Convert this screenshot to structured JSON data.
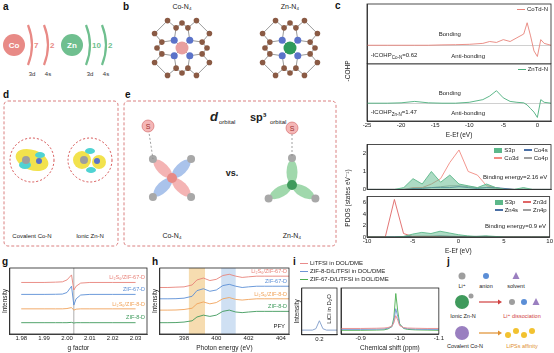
{
  "figure": {
    "a": {
      "label": "a",
      "atoms": [
        {
          "symbol": "Co",
          "color": "#e88a86",
          "shells": [
            {
              "orbital": "3d",
              "electrons": 7
            },
            {
              "orbital": "4s",
              "electrons": 2
            }
          ]
        },
        {
          "symbol": "Zn",
          "color": "#6fbf8f",
          "shells": [
            {
              "orbital": "3d",
              "electrons": 10
            },
            {
              "orbital": "4s",
              "electrons": 2
            }
          ]
        }
      ]
    },
    "b": {
      "label": "b",
      "structures": [
        {
          "title": "Co-N₄",
          "metal_color": "#e8a0a0"
        },
        {
          "title": "Zn-N₄",
          "metal_color": "#2e9b5a"
        }
      ]
    },
    "c": {
      "label": "c"
    },
    "d": {
      "label": "d",
      "captions": [
        "Covalent Co-N",
        "Ionic Zn-N"
      ]
    },
    "e": {
      "label": "e",
      "structures": [
        "Co-N₄",
        "Zn-N₄"
      ],
      "orbitals": [
        {
          "symbol": "d",
          "sub": "orbital"
        },
        {
          "symbol": "sp³",
          "sub": "orbital"
        }
      ],
      "vs": "vs.",
      "atom": "S"
    },
    "g": {
      "label": "g"
    },
    "h": {
      "label": "h"
    },
    "i": {
      "label": "i"
    },
    "j": {
      "label": "j",
      "li": "Li⁺",
      "anion": "anion",
      "solvent": "solvent",
      "ionic": "Ionic Zn-N",
      "dissociation": "Li⁺ dissociation",
      "covalent": "Covalent Co-N",
      "affinity": "LiPSs affinity"
    }
  },
  "chart_data": [
    {
      "type": "line",
      "x": [
        -25,
        -22,
        -20,
        -18,
        -16,
        -14,
        -12,
        -10,
        -8,
        -7,
        -6,
        -5,
        -4,
        -3,
        -2,
        -1.5,
        -1,
        -0.5,
        0,
        0.5,
        1,
        2
      ],
      "xlim": [
        -25,
        2
      ],
      "xticks": [
        -25,
        -20,
        -15,
        -10,
        -5,
        0
      ],
      "ylim": [
        -1,
        2.2
      ],
      "yticks": [
        0
      ],
      "grid": true,
      "tick_labels": false,
      "y_label": "-COHP",
      "legend": "top-right",
      "series": [
        {
          "name": "CoTd-N",
          "color": "#e8837a",
          "values": [
            0,
            0,
            0,
            0,
            0,
            0.02,
            0.03,
            0.05,
            0.1,
            0.2,
            0.15,
            0.3,
            0.2,
            0.4,
            0.6,
            1.2,
            0.5,
            -0.3,
            -0.6,
            0.3,
            0.1,
            0
          ]
        }
      ],
      "annotations": [
        {
          "text": "Bonding"
        },
        {
          "text": "Anti-bonding"
        },
        {
          "text": "-ICOHP",
          "sub": "Co-N",
          "tail": "=0.62"
        }
      ]
    },
    {
      "type": "line",
      "x": [
        -25,
        -22,
        -20,
        -18,
        -16,
        -14,
        -12,
        -10,
        -8,
        -7,
        -6,
        -5,
        -4,
        -3,
        -2,
        -1.5,
        -1,
        -0.5,
        0,
        0.5,
        1,
        2
      ],
      "xlim": [
        -25,
        2
      ],
      "xticks": [
        -25,
        -20,
        -15,
        -10,
        -5,
        0
      ],
      "ylim": [
        -1,
        2.2
      ],
      "yticks": [
        0
      ],
      "grid": true,
      "tick_labels": "x",
      "x_label": "E-Ef (eV)",
      "legend": "top-right",
      "series": [
        {
          "name": "ZnTd-N",
          "color": "#4caf7d",
          "values": [
            0,
            0,
            0.02,
            0.1,
            0.02,
            0,
            0,
            0.05,
            0.2,
            0.4,
            0.7,
            0.3,
            0.1,
            0.05,
            0.02,
            -0.1,
            -0.3,
            -0.5,
            -0.8,
            0.2,
            0.05,
            0
          ]
        }
      ],
      "annotations": [
        {
          "text": "Bonding"
        },
        {
          "text": "Anti-bonding"
        },
        {
          "text": "-ICOHP",
          "sub": "Zn-N",
          "tail": "=1.47"
        }
      ]
    },
    {
      "type": "line",
      "x": [
        -10,
        -9,
        -8,
        -7,
        -6,
        -5,
        -4,
        -3,
        -2,
        -1,
        0,
        1,
        2,
        3,
        4,
        5,
        6,
        7,
        8,
        9,
        10
      ],
      "xlim": [
        -10,
        10
      ],
      "xticks": [
        -10,
        -5,
        0,
        5,
        10
      ],
      "ylim": [
        0,
        2.5
      ],
      "yticks": [
        0,
        1,
        2
      ],
      "tick_labels": "y",
      "y_label": "PDOS (states eV⁻¹)",
      "legend": "top-right",
      "series": [
        {
          "name": "S3p",
          "color": "#5cb88a",
          "type": "area",
          "values": [
            0,
            0,
            0,
            0,
            0.1,
            0.6,
            0.3,
            1.0,
            0.4,
            0.8,
            0.3,
            0.2,
            0.1,
            0.3,
            0.1,
            0,
            0,
            0.1,
            0,
            0,
            0
          ]
        },
        {
          "name": "Co4s",
          "color": "#4a6fa5",
          "values": [
            0,
            0,
            0,
            0,
            0,
            0.05,
            0.05,
            0.1,
            0.1,
            0.1,
            0.15,
            0.1,
            0.05,
            0.1,
            0.1,
            0.05,
            0,
            0,
            0,
            0,
            0
          ]
        },
        {
          "name": "Co3d",
          "color": "#f28b82",
          "values": [
            0,
            0,
            0,
            0,
            0,
            0.1,
            0.1,
            0.3,
            0.6,
            1.5,
            2.2,
            1.0,
            0.8,
            0.2,
            0.1,
            0,
            0,
            0,
            0,
            0,
            0
          ]
        },
        {
          "name": "Co4p",
          "color": "#a0a0a0",
          "values": [
            0,
            0,
            0,
            0,
            0,
            0.05,
            0.1,
            0.1,
            0.15,
            0.2,
            0.2,
            0.15,
            0.1,
            0.1,
            0.05,
            0.05,
            0,
            0,
            0,
            0,
            0
          ]
        }
      ],
      "annotations": [
        {
          "text": "Binding energy=2.16 eV"
        }
      ]
    },
    {
      "type": "line",
      "x": [
        -10,
        -9,
        -8,
        -7,
        -6,
        -5,
        -4,
        -3,
        -2,
        -1,
        0,
        1,
        2,
        3,
        4,
        5,
        6,
        7,
        8,
        9,
        10
      ],
      "xlim": [
        -10,
        10
      ],
      "xticks": [
        -10,
        -5,
        0,
        5,
        10
      ],
      "ylim": [
        0,
        7
      ],
      "yticks": [
        0,
        2,
        4,
        6
      ],
      "x_label": "E-Ef (eV)",
      "legend": "top-right",
      "series": [
        {
          "name": "S3p",
          "color": "#5cb88a",
          "type": "area",
          "values": [
            0,
            0,
            0,
            0,
            0.1,
            0.5,
            0.8,
            0.6,
            1.0,
            0.7,
            0.4,
            0.2,
            0.1,
            0.2,
            0.1,
            0,
            0,
            0,
            0,
            0,
            0
          ]
        },
        {
          "name": "Zn3d",
          "color": "#e06666",
          "values": [
            0,
            0,
            0,
            6.5,
            0.6,
            0.1,
            0.1,
            0.1,
            0.05,
            0,
            0,
            0,
            0,
            0,
            0,
            0,
            0,
            0,
            0,
            0,
            0
          ]
        },
        {
          "name": "Zn4s",
          "color": "#4a6fa5",
          "values": [
            0,
            0,
            0,
            0,
            0.05,
            0.1,
            0.1,
            0.1,
            0.15,
            0.1,
            0.05,
            0.05,
            0.1,
            0.1,
            0.05,
            0,
            0,
            0,
            0,
            0,
            0
          ]
        },
        {
          "name": "Zn4p",
          "color": "#a0a0a0",
          "values": [
            0,
            0,
            0,
            0,
            0.05,
            0.1,
            0.15,
            0.15,
            0.2,
            0.15,
            0.1,
            0.05,
            0.1,
            0.1,
            0.05,
            0,
            0,
            0,
            0,
            0,
            0
          ]
        }
      ],
      "annotations": [
        {
          "text": "Binding energy=0.9 eV"
        }
      ]
    },
    {
      "type": "line",
      "x": [
        1.98,
        1.99,
        1.995,
        1.998,
        2.0,
        2.002,
        2.003,
        2.004,
        2.006,
        2.01,
        2.02,
        2.03
      ],
      "xlim": [
        1.975,
        2.035
      ],
      "xticks": [
        1.98,
        1.99,
        {
          "value": 2,
          "label": "2.00"
        },
        2.01,
        2.02,
        2.03
      ],
      "ylim": [
        0,
        10.5
      ],
      "tick_labels": "x",
      "x_label": "g factor",
      "y_label": "Intensity",
      "legend": "right",
      "vlines": [
        2.003
      ],
      "series": [
        {
          "name": "Li₂S₆/ZIF-67-D",
          "color": "#e8837a",
          "values": [
            8.2,
            8.2,
            8.25,
            8.3,
            8.6,
            9.4,
            7.0,
            7.6,
            8.1,
            8.2,
            8.2,
            8.2
          ]
        },
        {
          "name": "ZIF-67-D",
          "color": "#5b8ed6",
          "values": [
            6.3,
            6.3,
            6.32,
            6.35,
            6.6,
            7.6,
            4.6,
            5.6,
            6.2,
            6.3,
            6.3,
            6.3
          ]
        },
        {
          "name": "Li₂S₆/ZIF-8-D",
          "color": "#f0a35a",
          "values": [
            4.0,
            4.0,
            4.0,
            4.0,
            4.05,
            4.2,
            3.8,
            3.95,
            4.0,
            4.0,
            4.0,
            4.0
          ]
        },
        {
          "name": "ZIF-8-D",
          "color": "#3f9a5c",
          "values": [
            1.8,
            1.8,
            1.8,
            1.8,
            1.8,
            1.85,
            1.75,
            1.8,
            1.8,
            1.8,
            1.8,
            1.8
          ]
        }
      ]
    },
    {
      "type": "line",
      "x": [
        396.5,
        397,
        397.5,
        398,
        398.5,
        398.8,
        399.2,
        399.6,
        400,
        400.4,
        400.8,
        401.2,
        401.6,
        402,
        402.5,
        403,
        403.5,
        404,
        404.5
      ],
      "xlim": [
        396.5,
        404.5
      ],
      "xticks": [
        398,
        400,
        402,
        404
      ],
      "ylim": [
        0,
        10.5
      ],
      "tick_labels": "x",
      "x_label": "Photon energy (eV)",
      "y_label": "Intensity",
      "legend": "right",
      "bands": [
        {
          "from": 398.3,
          "to": 399.3,
          "color": "#f6dcb0"
        },
        {
          "from": 400.3,
          "to": 401.2,
          "color": "#cfe0f3"
        }
      ],
      "series": [
        {
          "name": "Li₂S₆/ZIF-67-D",
          "color": "#e8837a",
          "values": [
            7.4,
            7.4,
            7.45,
            7.5,
            7.8,
            8.6,
            8.9,
            8.5,
            8.7,
            9.3,
            9.5,
            9.2,
            9.0,
            9.1,
            9.2,
            9.2,
            9.2,
            9.2,
            9.2
          ]
        },
        {
          "name": "ZIF-67-D",
          "color": "#5b8ed6",
          "values": [
            5.6,
            5.6,
            5.62,
            5.7,
            6.0,
            6.9,
            7.2,
            6.8,
            7.0,
            7.7,
            7.9,
            7.6,
            7.4,
            7.5,
            7.6,
            7.6,
            7.6,
            7.6,
            7.6
          ]
        },
        {
          "name": "Li₂S₆/ZIF-8-D",
          "color": "#f0a35a",
          "values": [
            3.8,
            3.8,
            3.82,
            3.9,
            4.1,
            4.8,
            5.1,
            4.8,
            5.0,
            5.6,
            5.8,
            5.5,
            5.4,
            5.5,
            5.6,
            5.6,
            5.6,
            5.6,
            5.6
          ]
        },
        {
          "name": "ZIF-8-D",
          "color": "#3f9a5c",
          "values": [
            1.8,
            1.8,
            1.82,
            1.9,
            2.1,
            2.7,
            3.0,
            2.8,
            3.0,
            3.6,
            3.8,
            3.5,
            3.4,
            3.5,
            3.6,
            3.6,
            3.6,
            3.6,
            3.6
          ]
        }
      ],
      "annotations": [
        {
          "text": "PFY"
        }
      ]
    },
    {
      "type": "line",
      "x": [
        0.25,
        0.22,
        0.21,
        0.2,
        0.19,
        0.18,
        0.15
      ],
      "xlim": [
        0.25,
        0.15
      ],
      "xticks": [
        0.2
      ],
      "ylim": [
        0,
        10
      ],
      "tick_labels": "x",
      "y_label": "Intensity",
      "series": [
        {
          "color": "#7f9cc9",
          "values": [
            1.0,
            1.0,
            1.3,
            3.0,
            1.3,
            1.0,
            1.0
          ]
        }
      ],
      "annotations": [
        {
          "text": "LiCl in D₂O"
        }
      ]
    },
    {
      "type": "line",
      "x": [
        -0.85,
        -0.9,
        -0.94,
        -0.96,
        -0.97,
        -0.98,
        -0.985,
        -0.99,
        -0.995,
        -1.0,
        -1.01,
        -1.02,
        -1.04,
        -1.07,
        -1.1
      ],
      "xlim": [
        -0.85,
        -1.1
      ],
      "xticks": [
        -0.9,
        {
          "value": -1,
          "label": "-1.0"
        },
        -1.1
      ],
      "ylim": [
        0,
        10
      ],
      "tick_labels": "x",
      "x_label": "Chemical shift (ppm)",
      "legend": "top-left",
      "series": [
        {
          "name": "LiTFSI in DOL/DME",
          "color": "#e98b8b",
          "values": [
            1.2,
            1.2,
            1.25,
            1.3,
            1.4,
            1.7,
            2.4,
            4.0,
            3.0,
            1.8,
            1.4,
            1.3,
            1.25,
            1.2,
            1.2
          ]
        },
        {
          "name": "ZIF-8-D/LiTFSI in DOL/DME",
          "color": "#6f95d3",
          "values": [
            1.0,
            1.0,
            1.05,
            1.1,
            1.25,
            1.6,
            2.8,
            5.5,
            3.8,
            2.0,
            1.3,
            1.15,
            1.05,
            1.0,
            1.0
          ]
        },
        {
          "name": "ZIF-67-D/LiTFSI in DOL/DME",
          "color": "#4caf50",
          "values": [
            0.8,
            0.8,
            0.85,
            0.9,
            1.1,
            1.6,
            3.5,
            8.8,
            5.0,
            2.2,
            1.2,
            1.0,
            0.9,
            0.85,
            0.8
          ]
        }
      ]
    }
  ]
}
